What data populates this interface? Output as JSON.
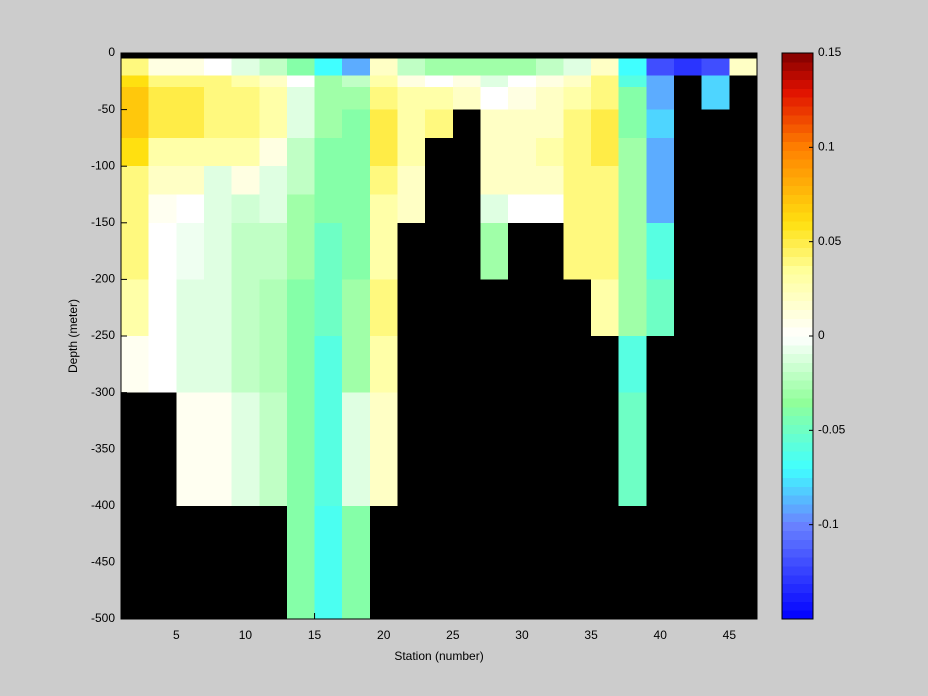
{
  "chart_data": {
    "type": "heatmap",
    "xlabel": "Station (number)",
    "ylabel": "Depth (meter)",
    "x": [
      1,
      3,
      5,
      7,
      9,
      11,
      13,
      15,
      17,
      19,
      21,
      23,
      25,
      27,
      29,
      31,
      33,
      35,
      37,
      39,
      41,
      43,
      45,
      47
    ],
    "y": [
      0,
      -5,
      -20,
      -30,
      -50,
      -75,
      -100,
      -125,
      -150,
      -200,
      -250,
      -300,
      -400,
      -500
    ],
    "values": [
      [
        null,
        null,
        null,
        null,
        null,
        null,
        null,
        null,
        null,
        null,
        null,
        null,
        null,
        null,
        null,
        null,
        null,
        null,
        null,
        null,
        null,
        null,
        null
      ],
      [
        0.04,
        0.01,
        0.01,
        0,
        -0.01,
        -0.02,
        -0.04,
        -0.07,
        -0.09,
        0.02,
        -0.02,
        -0.03,
        -0.03,
        -0.03,
        -0.03,
        -0.02,
        -0.01,
        0.02,
        -0.07,
        -0.12,
        -0.13,
        -0.12,
        0.02
      ],
      [
        0.06,
        0.04,
        0.04,
        0.04,
        0.03,
        0.02,
        0,
        -0.03,
        -0.02,
        0.03,
        0.01,
        0,
        0.01,
        -0.01,
        0,
        0.01,
        0.02,
        0.04,
        -0.06,
        -0.09,
        null,
        -0.08,
        null
      ],
      [
        0.07,
        0.05,
        0.05,
        0.04,
        0.04,
        0.03,
        -0.01,
        -0.03,
        -0.03,
        0.04,
        0.03,
        0.03,
        0.02,
        0,
        0.01,
        0.02,
        0.03,
        0.04,
        -0.04,
        -0.09,
        null,
        -0.08,
        null
      ],
      [
        0.07,
        0.05,
        0.05,
        0.04,
        0.04,
        0.03,
        -0.01,
        -0.03,
        -0.04,
        0.05,
        0.03,
        0.04,
        null,
        0.02,
        0.02,
        0.02,
        0.04,
        0.05,
        -0.04,
        -0.08,
        null,
        null,
        null
      ],
      [
        0.06,
        0.03,
        0.03,
        0.03,
        0.03,
        0.01,
        -0.02,
        -0.04,
        -0.04,
        0.05,
        0.03,
        null,
        null,
        0.02,
        0.02,
        0.03,
        0.04,
        0.05,
        -0.03,
        -0.09,
        null,
        null,
        null
      ],
      [
        0.04,
        0.02,
        0.02,
        -0.01,
        0.01,
        -0.01,
        -0.02,
        -0.04,
        -0.04,
        0.04,
        0.02,
        null,
        null,
        0.02,
        0.02,
        0.02,
        0.04,
        0.04,
        -0.03,
        -0.09,
        null,
        null,
        null
      ],
      [
        0.04,
        0.005,
        0,
        -0.01,
        -0.015,
        -0.01,
        -0.03,
        -0.04,
        -0.04,
        0.03,
        0.02,
        null,
        null,
        -0.01,
        0,
        0,
        0.04,
        0.04,
        -0.03,
        -0.09,
        null,
        null,
        null
      ],
      [
        0.04,
        0,
        -0.005,
        -0.01,
        -0.02,
        -0.02,
        -0.03,
        -0.05,
        -0.04,
        0.03,
        null,
        null,
        null,
        -0.03,
        null,
        null,
        0.04,
        0.04,
        -0.03,
        -0.06,
        null,
        null,
        null
      ],
      [
        0.03,
        0,
        -0.01,
        -0.01,
        -0.02,
        -0.025,
        -0.04,
        -0.05,
        -0.03,
        0.04,
        null,
        null,
        null,
        null,
        null,
        null,
        null,
        0.03,
        -0.03,
        -0.05,
        null,
        null,
        null
      ],
      [
        0.005,
        0,
        -0.01,
        -0.01,
        -0.02,
        -0.025,
        -0.04,
        -0.06,
        -0.03,
        0.03,
        null,
        null,
        null,
        null,
        null,
        null,
        null,
        null,
        -0.06,
        null,
        null,
        null,
        null
      ],
      [
        null,
        null,
        0.005,
        0.005,
        -0.01,
        -0.02,
        -0.04,
        -0.06,
        -0.01,
        0.02,
        null,
        null,
        null,
        null,
        null,
        null,
        null,
        null,
        -0.05,
        null,
        null,
        null,
        null
      ],
      [
        null,
        null,
        null,
        null,
        null,
        null,
        -0.04,
        -0.065,
        -0.04,
        null,
        null,
        null,
        null,
        null,
        null,
        null,
        null,
        null,
        null,
        null,
        null,
        null,
        null
      ]
    ],
    "xlim": [
      1,
      47
    ],
    "ylim": [
      -500,
      0
    ],
    "xticks": [
      5,
      10,
      15,
      20,
      25,
      30,
      35,
      40,
      45
    ],
    "yticks": [
      0,
      -50,
      -100,
      -150,
      -200,
      -250,
      -300,
      -350,
      -400,
      -450,
      -500
    ],
    "clim": [
      -0.15,
      0.15
    ],
    "cticks": [
      -0.1,
      -0.05,
      0,
      0.05,
      0.1,
      0.15
    ],
    "missing_color": "#000000",
    "colormap": [
      {
        "value": -0.15,
        "color": "#0000ff"
      },
      {
        "value": -0.1,
        "color": "#6a82ff"
      },
      {
        "value": -0.07,
        "color": "#40ffff"
      },
      {
        "value": -0.035,
        "color": "#90ff9a"
      },
      {
        "value": 0,
        "color": "#ffffff"
      },
      {
        "value": 0.035,
        "color": "#ffff9a"
      },
      {
        "value": 0.06,
        "color": "#ffe010"
      },
      {
        "value": 0.1,
        "color": "#ff8000"
      },
      {
        "value": 0.13,
        "color": "#e01000"
      },
      {
        "value": 0.15,
        "color": "#800000"
      }
    ]
  }
}
